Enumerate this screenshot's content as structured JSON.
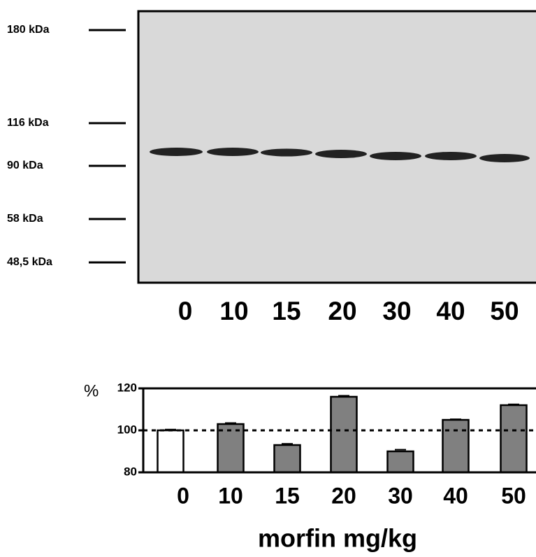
{
  "blot": {
    "markers": [
      "180 kDa",
      "116 kDa",
      "90 kDa",
      "58 kDa",
      "48,5 kDa"
    ]
  },
  "chart_data": {
    "type": "bar",
    "y_label": "%",
    "x_label": "morfin mg/kg",
    "categories": [
      "0",
      "10",
      "15",
      "20",
      "30",
      "40",
      "50"
    ],
    "values": [
      100,
      103,
      93,
      116,
      90,
      105,
      112
    ],
    "errors": [
      0.4,
      0.5,
      0.6,
      0.5,
      0.8,
      0.3,
      0.4
    ],
    "colors": [
      "#ffffff",
      "#808080",
      "#808080",
      "#808080",
      "#808080",
      "#808080",
      "#808080"
    ],
    "ylim": [
      80,
      120
    ],
    "yticks": [
      80,
      100,
      120
    ],
    "reference_line": 100
  }
}
